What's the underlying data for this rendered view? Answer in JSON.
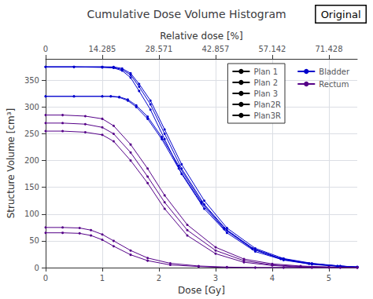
{
  "chart_data": {
    "type": "line",
    "title": "Cumulative Dose Volume Histogram",
    "xlabel": "Dose [Gy]",
    "ylabel": "Structure Volume [cm³]",
    "x2label": "Relative dose [%]",
    "annotation": "Original",
    "xlim": [
      0,
      5.5
    ],
    "xticks": [
      0,
      1,
      2,
      3,
      4,
      5
    ],
    "ylim": [
      0,
      390
    ],
    "yticks": [
      0,
      50,
      100,
      150,
      200,
      250,
      300,
      350
    ],
    "x2lim": [
      0,
      78.5708
    ],
    "x2ticks": [
      0,
      14.285,
      28.571,
      42.857,
      57.142,
      71.428
    ],
    "grid": true,
    "legend": "upper right",
    "marker": "circle",
    "series": [
      {
        "name": "Bladder",
        "color": "#0000cc",
        "plans": [
          {
            "name": "Plan 1",
            "x": [
              0,
              0.5,
              1.0,
              1.2,
              1.35,
              1.5,
              1.65,
              1.85,
              2.1,
              2.4,
              2.8,
              3.2,
              3.7,
              4.2,
              4.7,
              5.2,
              5.5
            ],
            "values": [
              375,
              375,
              374,
              373,
              368,
              355,
              330,
              295,
              240,
              175,
              110,
              65,
              30,
              14,
              6,
              2,
              1
            ]
          },
          {
            "name": "Plan 2",
            "x": [
              0,
              0.5,
              1.0,
              1.2,
              1.35,
              1.5,
              1.65,
              1.85,
              2.1,
              2.4,
              2.8,
              3.2,
              3.7,
              4.2,
              4.7,
              5.2,
              5.5
            ],
            "values": [
              375,
              375,
              375,
              374,
              370,
              360,
              338,
              305,
              250,
              185,
              118,
              70,
              33,
              15,
              7,
              3,
              1
            ]
          },
          {
            "name": "Plan 3",
            "x": [
              0,
              0.5,
              1.0,
              1.2,
              1.35,
              1.5,
              1.65,
              1.85,
              2.1,
              2.4,
              2.8,
              3.2,
              3.7,
              4.2,
              4.7,
              5.2,
              5.5
            ],
            "values": [
              375,
              375,
              375,
              375,
              372,
              363,
              343,
              312,
              258,
              193,
              125,
              74,
              36,
              17,
              8,
              3,
              1
            ]
          },
          {
            "name": "Plan2R",
            "x": [
              0,
              0.5,
              1.0,
              1.15,
              1.3,
              1.45,
              1.6,
              1.8,
              2.05,
              2.35,
              2.75,
              3.15,
              3.65,
              4.15,
              4.65,
              5.15,
              5.5
            ],
            "values": [
              320,
              320,
              320,
              320,
              318,
              312,
              300,
              278,
              240,
              185,
              120,
              72,
              35,
              16,
              7,
              3,
              1
            ]
          },
          {
            "name": "Plan3R",
            "x": [
              0,
              0.5,
              1.0,
              1.15,
              1.3,
              1.45,
              1.6,
              1.8,
              2.05,
              2.35,
              2.75,
              3.15,
              3.65,
              4.15,
              4.65,
              5.15,
              5.5
            ],
            "values": [
              320,
              320,
              320,
              320,
              319,
              314,
              303,
              282,
              244,
              190,
              123,
              74,
              36,
              17,
              8,
              3,
              1
            ]
          }
        ]
      },
      {
        "name": "Rectum",
        "color": "#550088",
        "plans": [
          {
            "name": "Plan 1",
            "x": [
              0,
              0.3,
              0.7,
              1.0,
              1.2,
              1.5,
              1.8,
              2.1,
              2.5,
              3.0,
              3.5,
              4.0,
              4.5,
              5.0,
              5.5
            ],
            "values": [
              285,
              285,
              283,
              278,
              265,
              230,
              185,
              135,
              80,
              38,
              16,
              7,
              3,
              1,
              0
            ]
          },
          {
            "name": "Plan 2",
            "x": [
              0,
              0.3,
              0.7,
              1.0,
              1.2,
              1.5,
              1.8,
              2.1,
              2.5,
              3.0,
              3.5,
              4.0,
              4.5,
              5.0,
              5.5
            ],
            "values": [
              270,
              270,
              268,
              262,
              250,
              215,
              170,
              122,
              70,
              32,
              13,
              5,
              2,
              1,
              0
            ]
          },
          {
            "name": "Plan 3",
            "x": [
              0,
              0.3,
              0.7,
              1.0,
              1.2,
              1.5,
              1.8,
              2.1,
              2.5,
              3.0,
              3.5,
              4.0,
              4.5,
              5.0,
              5.5
            ],
            "values": [
              255,
              255,
              253,
              248,
              236,
              200,
              158,
              110,
              60,
              26,
              10,
              4,
              1,
              0,
              0
            ]
          },
          {
            "name": "Plan2R",
            "x": [
              0,
              0.3,
              0.6,
              0.8,
              1.0,
              1.2,
              1.5,
              1.8,
              2.2,
              2.7,
              3.2,
              3.7,
              4.2,
              4.7,
              5.2
            ],
            "values": [
              75,
              75,
              74,
              70,
              62,
              50,
              32,
              18,
              8,
              3,
              1,
              0,
              0,
              0,
              0
            ]
          },
          {
            "name": "Plan3R",
            "x": [
              0,
              0.3,
              0.6,
              0.8,
              1.0,
              1.2,
              1.5,
              1.8,
              2.2,
              2.7,
              3.2,
              3.7,
              4.2,
              4.7,
              5.2
            ],
            "values": [
              65,
              65,
              64,
              60,
              52,
              40,
              24,
              13,
              5,
              2,
              0,
              0,
              0,
              0,
              0
            ]
          }
        ]
      }
    ]
  }
}
